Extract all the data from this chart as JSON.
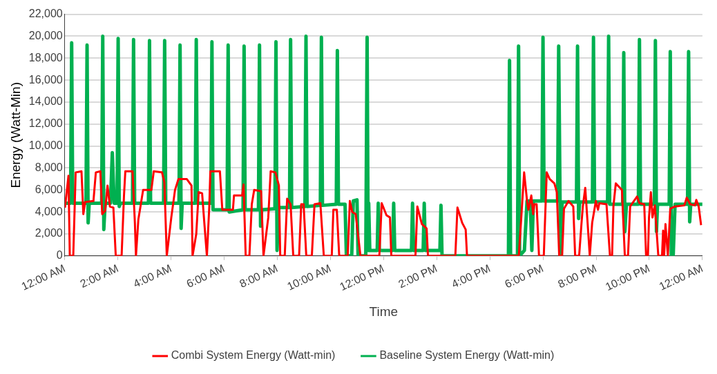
{
  "chart_data": {
    "type": "line",
    "xlabel": "Time",
    "ylabel": "Energy (Watt-Min)",
    "xlim": [
      0,
      24
    ],
    "xticks": [
      {
        "value": 0,
        "label": "12:00 AM"
      },
      {
        "value": 2,
        "label": "2:00 AM"
      },
      {
        "value": 4,
        "label": "4:00 AM"
      },
      {
        "value": 6,
        "label": "6:00 AM"
      },
      {
        "value": 8,
        "label": "8:00 AM"
      },
      {
        "value": 10,
        "label": "10:00 AM"
      },
      {
        "value": 12,
        "label": "12:00 PM"
      },
      {
        "value": 14,
        "label": "2:00 PM"
      },
      {
        "value": 16,
        "label": "4:00 PM"
      },
      {
        "value": 18,
        "label": "6:00 PM"
      },
      {
        "value": 20,
        "label": "8:00 PM"
      },
      {
        "value": 22,
        "label": "10:00 PM"
      },
      {
        "value": 24,
        "label": "12:00 AM"
      }
    ],
    "ylim": [
      0,
      22000
    ],
    "yticks": [
      0,
      {
        "value": 2000,
        "label": "2,000"
      },
      {
        "value": 4000,
        "label": "4,000"
      },
      {
        "value": 6000,
        "label": "6,000"
      },
      {
        "value": 8000,
        "label": "8,000"
      },
      {
        "value": 10000,
        "label": "10,000"
      },
      {
        "value": 12000,
        "label": "12,000"
      },
      {
        "value": 14000,
        "label": "14,000"
      },
      {
        "value": 16000,
        "label": "16,000"
      },
      {
        "value": 18000,
        "label": "18,000"
      },
      {
        "value": 20000,
        "label": "20,000"
      },
      {
        "value": 22000,
        "label": "22,000"
      }
    ],
    "grid": "y",
    "legend": "bottom",
    "marker": "none",
    "line_style": "solid",
    "series": [
      {
        "name": "Baseline System Energy (Watt-min)",
        "color": "#00b050",
        "x": [
          0,
          0.22,
          0.26,
          0.3,
          0.8,
          0.84,
          0.88,
          0.92,
          1.39,
          1.43,
          1.47,
          1.52,
          1.72,
          1.79,
          1.86,
          1.97,
          2.01,
          2.05,
          2.1,
          2.55,
          2.59,
          2.63,
          3.15,
          3.19,
          3.23,
          3.72,
          3.76,
          3.8,
          4.3,
          4.34,
          4.38,
          4.42,
          4.91,
          4.95,
          4.99,
          5.5,
          5.54,
          5.58,
          6.11,
          6.15,
          6.19,
          6.71,
          6.75,
          6.79,
          7.29,
          7.33,
          7.37,
          7.41,
          7.91,
          7.95,
          7.99,
          8.05,
          8.46,
          8.5,
          8.54,
          9.04,
          9.08,
          9.12,
          9.62,
          9.66,
          9.7,
          10.22,
          10.26,
          10.3,
          10.55,
          10.6,
          10.8,
          10.86,
          11.0,
          11.04,
          11.33,
          11.38,
          11.42,
          11.44,
          11.48,
          11.76,
          11.8,
          11.84,
          12.34,
          12.38,
          12.42,
          13.05,
          13.09,
          13.13,
          13.49,
          13.53,
          13.57,
          14.12,
          14.16,
          14.2,
          16.7,
          16.74,
          16.78,
          17.04,
          17.08,
          17.12,
          17.3,
          17.4,
          17.52,
          17.58,
          17.64,
          17.96,
          18.0,
          18.04,
          18.55,
          18.59,
          18.66,
          18.72,
          19.26,
          19.3,
          19.34,
          19.38,
          19.86,
          19.9,
          19.94,
          20.43,
          20.47,
          20.51,
          21.0,
          21.04,
          21.08,
          21.14,
          21.59,
          21.63,
          21.67,
          22.19,
          22.23,
          22.27,
          22.31,
          22.75,
          22.79,
          22.83,
          22.9,
          22.97,
          23.44,
          23.48,
          23.52,
          23.56,
          24
        ],
        "values": [
          4800,
          4800,
          19400,
          4800,
          4800,
          19200,
          3000,
          4800,
          4800,
          20000,
          2400,
          4800,
          4800,
          9400,
          4800,
          4800,
          19800,
          4500,
          4800,
          4800,
          19700,
          4800,
          4800,
          19600,
          4800,
          4800,
          19600,
          4800,
          4800,
          19200,
          2500,
          4800,
          4800,
          19700,
          4800,
          4800,
          19500,
          4200,
          4200,
          19200,
          4000,
          4200,
          19100,
          4200,
          4200,
          19200,
          2700,
          4200,
          4300,
          19500,
          500,
          4400,
          4400,
          19700,
          4400,
          4500,
          20000,
          4500,
          4600,
          19900,
          4600,
          4700,
          18700,
          4700,
          4700,
          0,
          0,
          5000,
          5100,
          0,
          0,
          19900,
          500,
          4800,
          500,
          500,
          4800,
          500,
          500,
          4800,
          500,
          500,
          4800,
          500,
          500,
          4800,
          500,
          500,
          4600,
          0,
          0,
          17800,
          0,
          0,
          19100,
          0,
          500,
          5000,
          5000,
          500,
          5000,
          5000,
          19900,
          5000,
          5000,
          19100,
          0,
          4900,
          4900,
          19100,
          3400,
          4900,
          4900,
          19900,
          4900,
          4900,
          20000,
          4700,
          4700,
          18500,
          2200,
          4700,
          4700,
          19700,
          4700,
          4700,
          19600,
          2200,
          4700,
          4700,
          18600,
          0,
          0,
          4700,
          4700,
          18600,
          3100,
          4700,
          4700
        ]
      },
      {
        "name": "Combi System Energy (Watt-min)",
        "color": "#ff0000",
        "x": [
          0.01,
          0.14,
          0.19,
          0.32,
          0.36,
          0.41,
          0.63,
          0.7,
          0.77,
          1.08,
          1.17,
          1.34,
          1.41,
          1.52,
          1.61,
          1.7,
          1.83,
          1.92,
          2.14,
          2.23,
          2.28,
          2.55,
          2.64,
          2.68,
          2.77,
          2.95,
          3.26,
          3.35,
          3.66,
          3.75,
          3.84,
          4.01,
          4.15,
          4.28,
          4.59,
          4.77,
          4.81,
          4.95,
          5.04,
          5.17,
          5.26,
          5.35,
          5.44,
          5.48,
          5.84,
          5.93,
          6.33,
          6.37,
          6.68,
          6.73,
          6.81,
          6.95,
          7.04,
          7.13,
          7.39,
          7.48,
          7.66,
          7.75,
          7.93,
          8.06,
          8.11,
          8.28,
          8.37,
          8.5,
          8.6,
          8.82,
          8.9,
          8.99,
          9.09,
          9.3,
          9.4,
          9.62,
          9.75,
          10.05,
          10.11,
          10.24,
          10.33,
          10.65,
          10.73,
          10.82,
          10.95,
          11.13,
          11.84,
          11.93,
          12.11,
          12.24,
          12.29,
          13.2,
          13.27,
          13.44,
          13.62,
          13.67,
          14.7,
          14.78,
          14.96,
          15.09,
          15.14,
          17.09,
          17.18,
          17.29,
          17.4,
          17.45,
          17.56,
          17.63,
          17.67,
          17.76,
          17.85,
          18.03,
          18.14,
          18.25,
          18.43,
          18.52,
          18.61,
          18.72,
          18.79,
          18.96,
          19.14,
          19.21,
          19.36,
          19.45,
          19.5,
          19.59,
          19.72,
          19.76,
          19.85,
          19.99,
          20.07,
          20.12,
          20.39,
          20.52,
          20.6,
          20.65,
          20.74,
          20.97,
          21.08,
          21.2,
          21.28,
          21.54,
          21.63,
          21.81,
          21.88,
          21.95,
          21.99,
          22.06,
          22.12,
          22.21,
          22.34,
          22.48,
          22.52,
          22.56,
          22.61,
          22.7,
          22.79,
          22.97,
          23.32,
          23.41,
          23.54,
          23.72,
          23.77,
          23.86,
          23.95
        ],
        "values": [
          4400,
          7300,
          0,
          0,
          3300,
          7600,
          7700,
          3800,
          4900,
          5000,
          7600,
          7700,
          3800,
          4100,
          6400,
          4500,
          4400,
          0,
          0,
          5500,
          7700,
          7700,
          3000,
          0,
          3300,
          6000,
          6000,
          7700,
          7600,
          6700,
          0,
          3500,
          6000,
          7000,
          7000,
          6400,
          0,
          2000,
          5800,
          5700,
          2800,
          0,
          4500,
          7700,
          7700,
          4200,
          4200,
          5500,
          5500,
          6500,
          0,
          0,
          4700,
          6000,
          5900,
          0,
          3500,
          7700,
          7600,
          6400,
          0,
          0,
          5200,
          4700,
          0,
          0,
          4700,
          4700,
          0,
          0,
          4700,
          4800,
          0,
          0,
          4200,
          4200,
          0,
          0,
          5000,
          4000,
          3800,
          0,
          0,
          4800,
          3700,
          3500,
          0,
          0,
          4500,
          2900,
          2500,
          0,
          0,
          4400,
          3000,
          2400,
          0,
          0,
          3400,
          7600,
          5000,
          4200,
          5500,
          3800,
          4700,
          4700,
          0,
          0,
          7600,
          7000,
          6600,
          5800,
          0,
          0,
          4300,
          5000,
          4500,
          0,
          0,
          3000,
          4500,
          6200,
          1500,
          0,
          3000,
          5000,
          4200,
          4800,
          4700,
          0,
          0,
          4500,
          6600,
          6000,
          0,
          0,
          4500,
          5400,
          4800,
          4700,
          0,
          0,
          3500,
          5800,
          3500,
          4600,
          0,
          0,
          2300,
          0,
          2900,
          0,
          4300,
          4500,
          4600,
          5300,
          4700,
          4600,
          5100,
          4500,
          2800
        ]
      }
    ]
  }
}
